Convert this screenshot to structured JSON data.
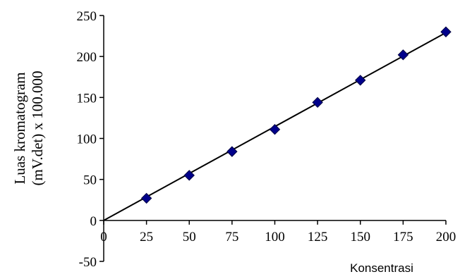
{
  "chart_data": {
    "type": "scatter",
    "title": "",
    "xlabel": "Konsentrasi",
    "ylabel_lines": [
      "Luas kromatogram",
      "(mV.det) x 100.000"
    ],
    "xlim": [
      0,
      200
    ],
    "ylim": [
      -50,
      250
    ],
    "x_ticks": [
      0,
      25,
      50,
      75,
      100,
      125,
      150,
      175,
      200
    ],
    "y_ticks": [
      -50,
      0,
      50,
      100,
      150,
      200,
      250
    ],
    "grid": false,
    "legend": "none",
    "marker": "diamond",
    "marker_color": "#00008b",
    "points": [
      {
        "x": 25,
        "y": 27
      },
      {
        "x": 50,
        "y": 55
      },
      {
        "x": 75,
        "y": 84
      },
      {
        "x": 100,
        "y": 111
      },
      {
        "x": 125,
        "y": 144
      },
      {
        "x": 150,
        "y": 171
      },
      {
        "x": 175,
        "y": 202
      },
      {
        "x": 200,
        "y": 230
      }
    ],
    "trendline": {
      "x": [
        0,
        200
      ],
      "y": [
        0,
        229
      ]
    }
  }
}
